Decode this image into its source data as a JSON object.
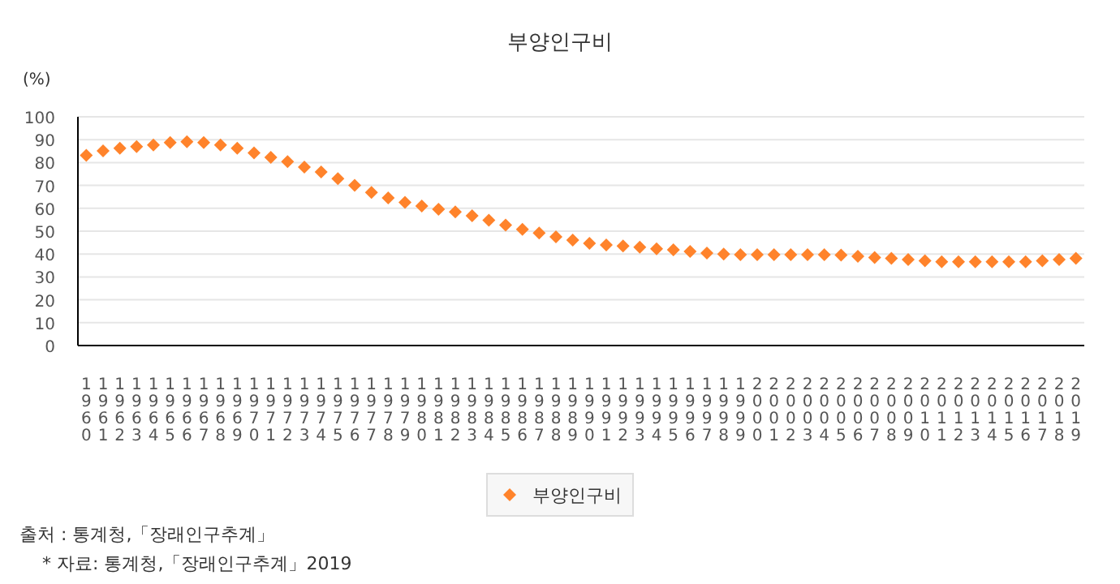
{
  "chart_data": {
    "type": "scatter",
    "title": "부양인구비",
    "ylabel": "(%)",
    "categories": [
      "1960",
      "1961",
      "1962",
      "1963",
      "1964",
      "1965",
      "1966",
      "1967",
      "1968",
      "1969",
      "1970",
      "1971",
      "1972",
      "1973",
      "1974",
      "1975",
      "1976",
      "1977",
      "1978",
      "1979",
      "1980",
      "1981",
      "1982",
      "1983",
      "1984",
      "1985",
      "1986",
      "1987",
      "1988",
      "1989",
      "1990",
      "1991",
      "1992",
      "1993",
      "1994",
      "1995",
      "1996",
      "1997",
      "1998",
      "1999",
      "2000",
      "2001",
      "2002",
      "2003",
      "2004",
      "2005",
      "2006",
      "2007",
      "2008",
      "2009",
      "2010",
      "2011",
      "2012",
      "2013",
      "2014",
      "2015",
      "2016",
      "2017",
      "2018",
      "2019"
    ],
    "series": [
      {
        "name": "부양인구비",
        "color": "#ff832b",
        "values": [
          83.2,
          85.1,
          86.3,
          87,
          87.7,
          88.7,
          89.1,
          88.7,
          87.7,
          86.3,
          84.2,
          82.3,
          80.4,
          78,
          75.9,
          73,
          70,
          66.9,
          64.5,
          62.6,
          61,
          59.6,
          58.4,
          56.7,
          54.8,
          52.7,
          50.8,
          49.2,
          47.5,
          46.1,
          44.7,
          44,
          43.5,
          43,
          42.3,
          41.8,
          41.1,
          40.4,
          40,
          39.7,
          39.7,
          39.7,
          39.7,
          39.7,
          39.7,
          39.5,
          39,
          38.5,
          38.1,
          37.6,
          37.1,
          36.6,
          36.6,
          36.6,
          36.6,
          36.6,
          36.6,
          37.1,
          37.6,
          38.1
        ]
      }
    ],
    "ylim": [
      0,
      100
    ],
    "yticks": [
      0,
      10,
      20,
      30,
      40,
      50,
      60,
      70,
      80,
      90,
      100
    ],
    "grid": "y",
    "marker": "diamond",
    "legend": "bottom",
    "annotations": [
      "출처 : 통계청,「장래인구추계」",
      "* 자료: 통계청,「장래인구추계」2019"
    ]
  }
}
